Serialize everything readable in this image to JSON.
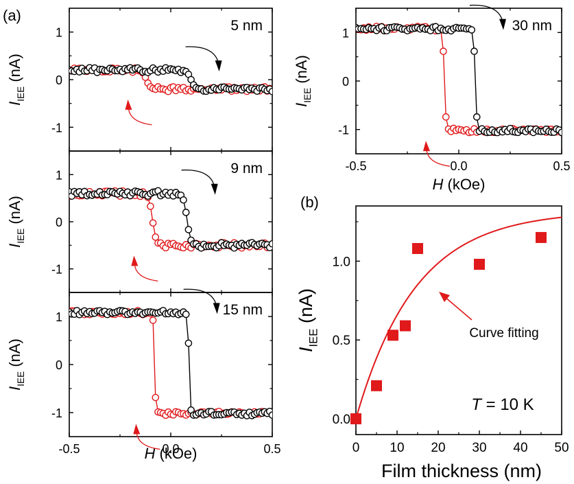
{
  "figure": {
    "panel_a_label": "(a)",
    "panel_b_label": "(b)",
    "colors": {
      "up_sweep": "#e0191b",
      "down_sweep": "#000000",
      "fit": "#e0191b",
      "marker": "#e0191b"
    }
  },
  "chart_data": [
    {
      "id": "a1",
      "type": "scatter",
      "annotation": "5 nm",
      "xlabel": "",
      "ylabel_main": "I",
      "ylabel_sub": "IEE",
      "ylabel_unit": " (nA)",
      "xlim": [
        -0.5,
        0.5
      ],
      "ylim": [
        -1.5,
        1.5
      ],
      "xticks": [],
      "yticks": [
        "1",
        "0",
        "-1"
      ],
      "hysteresis": {
        "high": 0.2,
        "low": -0.2,
        "switch_down_sweep": 0.1,
        "switch_up_sweep": -0.12,
        "sharpness": 0.02
      },
      "series": [
        {
          "sweep": "down_sweep",
          "color": "#000000"
        },
        {
          "sweep": "up_sweep",
          "color": "#e0191b"
        }
      ]
    },
    {
      "id": "a2",
      "type": "scatter",
      "annotation": "9 nm",
      "xlabel": "",
      "ylabel_main": "I",
      "ylabel_sub": "IEE",
      "ylabel_unit": " (nA)",
      "xlim": [
        -0.5,
        0.5
      ],
      "ylim": [
        -1.5,
        1.5
      ],
      "xticks": [],
      "yticks": [
        "1",
        "0",
        "-1"
      ],
      "hysteresis": {
        "high": 0.6,
        "low": -0.5,
        "switch_down_sweep": 0.08,
        "switch_up_sweep": -0.09,
        "sharpness": 0.018
      },
      "series": [
        {
          "sweep": "down_sweep",
          "color": "#000000"
        },
        {
          "sweep": "up_sweep",
          "color": "#e0191b"
        }
      ]
    },
    {
      "id": "a3",
      "type": "scatter",
      "annotation": "15 nm",
      "xlabel": "H (kOe)",
      "ylabel_main": "I",
      "ylabel_sub": "IEE",
      "ylabel_unit": " (nA)",
      "xlim": [
        -0.5,
        0.5
      ],
      "ylim": [
        -1.5,
        1.5
      ],
      "xticks": [
        "-0.5",
        "0.0",
        "0.5"
      ],
      "yticks": [
        "1",
        "0",
        "-1"
      ],
      "hysteresis": {
        "high": 1.08,
        "low": -1.02,
        "switch_down_sweep": 0.09,
        "switch_up_sweep": -0.08,
        "sharpness": 0.006
      },
      "series": [
        {
          "sweep": "down_sweep",
          "color": "#000000"
        },
        {
          "sweep": "up_sweep",
          "color": "#e0191b"
        }
      ]
    },
    {
      "id": "a4",
      "type": "scatter",
      "annotation": "30 nm",
      "xlabel": "H (kOe)",
      "ylabel_main": "I",
      "ylabel_sub": "IEE",
      "ylabel_unit": " (nA)",
      "xlim": [
        -0.5,
        0.5
      ],
      "ylim": [
        -1.5,
        1.5
      ],
      "xticks": [
        "-0.5",
        "0.0",
        "0.5"
      ],
      "yticks": [
        "1",
        "0",
        "-1"
      ],
      "hysteresis": {
        "high": 1.08,
        "low": -1.02,
        "switch_down_sweep": 0.08,
        "switch_up_sweep": -0.07,
        "sharpness": 0.008
      },
      "series": [
        {
          "sweep": "down_sweep",
          "color": "#000000"
        },
        {
          "sweep": "up_sweep",
          "color": "#e0191b"
        }
      ]
    },
    {
      "id": "b",
      "type": "scatter",
      "xlabel": "Film thickness (nm)",
      "ylabel_main": "I",
      "ylabel_sub": "IEE",
      "ylabel_unit": " (nA)",
      "xlim": [
        0,
        50
      ],
      "ylim": [
        -0.1,
        1.35
      ],
      "xticks": [
        "0",
        "10",
        "20",
        "30",
        "40",
        "50"
      ],
      "yticks": [
        "0.0",
        "0.5",
        "1.0"
      ],
      "annotation": "T = 10 K",
      "fit_label": "Curve fitting",
      "points": [
        {
          "x": 0,
          "y": 0.0
        },
        {
          "x": 5,
          "y": 0.21
        },
        {
          "x": 9,
          "y": 0.53
        },
        {
          "x": 12,
          "y": 0.59
        },
        {
          "x": 15,
          "y": 1.08
        },
        {
          "x": 30,
          "y": 0.98
        },
        {
          "x": 45,
          "y": 1.15
        }
      ],
      "fit": {
        "A": 1.32,
        "lambda": 14.5
      }
    }
  ]
}
